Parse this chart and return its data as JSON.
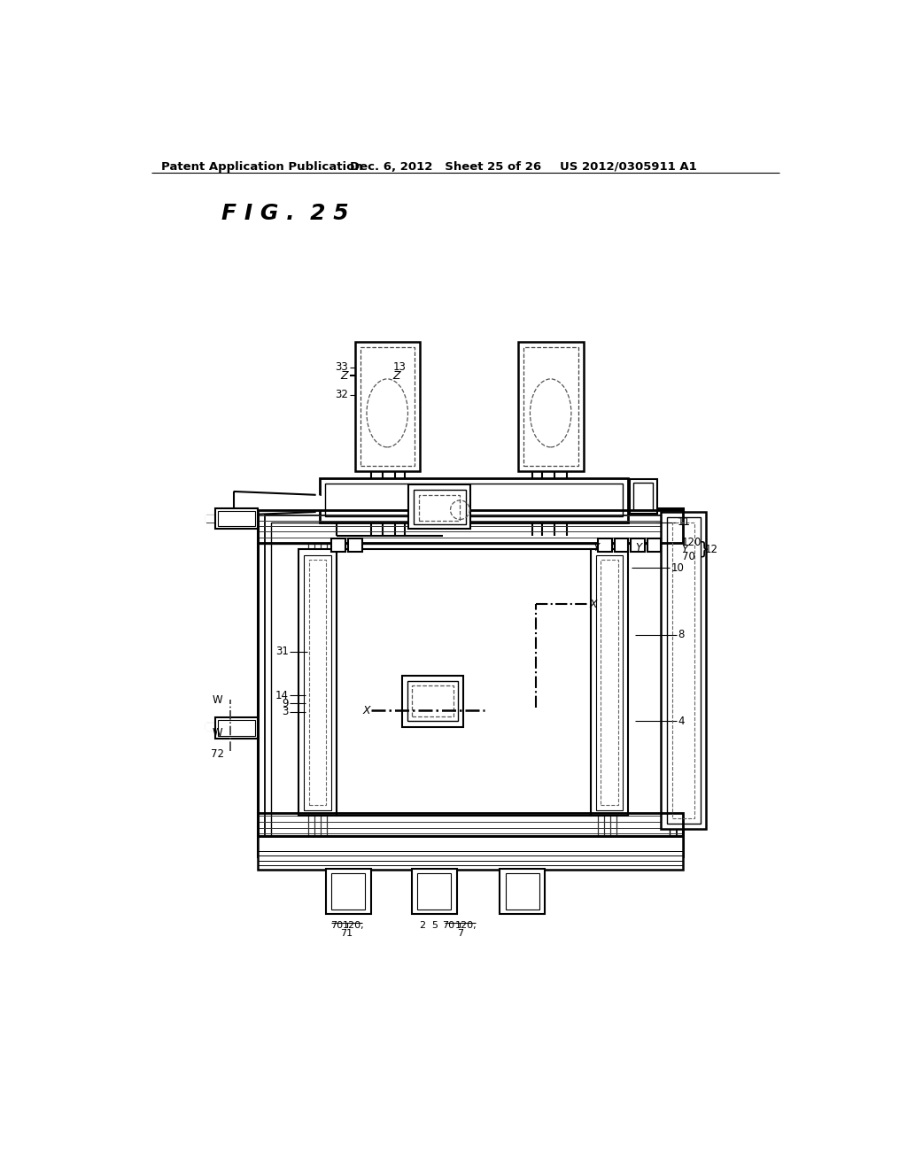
{
  "header_left": "Patent Application Publication",
  "header_mid": "Dec. 6, 2012   Sheet 25 of 26",
  "header_right": "US 2012/0305911 A1",
  "fig_label": "F I G .  2 5",
  "bg": "#ffffff",
  "lc": "#000000"
}
